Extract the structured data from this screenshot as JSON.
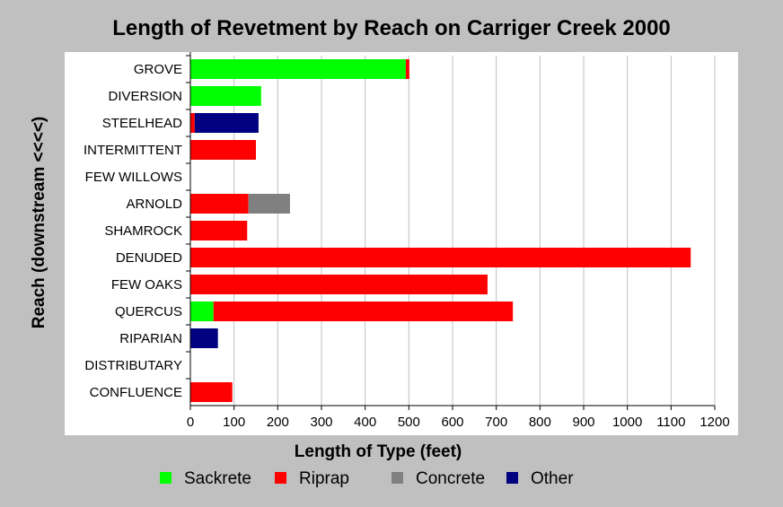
{
  "chart_data": {
    "type": "bar",
    "orientation": "horizontal",
    "stacked": true,
    "title": "Length of Revetment by Reach on Carriger Creek 2000",
    "xlabel": "Length of Type (feet)",
    "ylabel": "Reach (downstream <<<<)",
    "xlim": [
      0,
      1200
    ],
    "xticks": [
      0,
      100,
      200,
      300,
      400,
      500,
      600,
      700,
      800,
      900,
      1000,
      1100,
      1200
    ],
    "grid": "vertical",
    "legend_position": "bottom",
    "categories": [
      "GROVE",
      "DIVERSION",
      "STEELHEAD",
      "INTERMITTENT",
      "FEW WILLOWS",
      "ARNOLD",
      "SHAMROCK",
      "DENUDED",
      "FEW OAKS",
      "QUERCUS",
      "RIPARIAN",
      "DISTRIBUTARY",
      "CONFLUENCE"
    ],
    "series": [
      {
        "name": "Sackrete",
        "color": "#00ff00",
        "values": [
          493,
          162,
          0,
          0,
          0,
          0,
          0,
          0,
          0,
          53,
          0,
          0,
          0
        ]
      },
      {
        "name": "Riprap",
        "color": "#ff0000",
        "values": [
          8,
          0,
          10,
          150,
          0,
          133,
          130,
          1145,
          680,
          685,
          0,
          0,
          96
        ]
      },
      {
        "name": "Concrete",
        "color": "#808080",
        "values": [
          0,
          0,
          0,
          0,
          0,
          95,
          0,
          0,
          0,
          0,
          0,
          0,
          0
        ]
      },
      {
        "name": "Other",
        "color": "#000080",
        "values": [
          0,
          0,
          146,
          0,
          0,
          0,
          0,
          0,
          0,
          0,
          63,
          0,
          0
        ]
      }
    ]
  }
}
